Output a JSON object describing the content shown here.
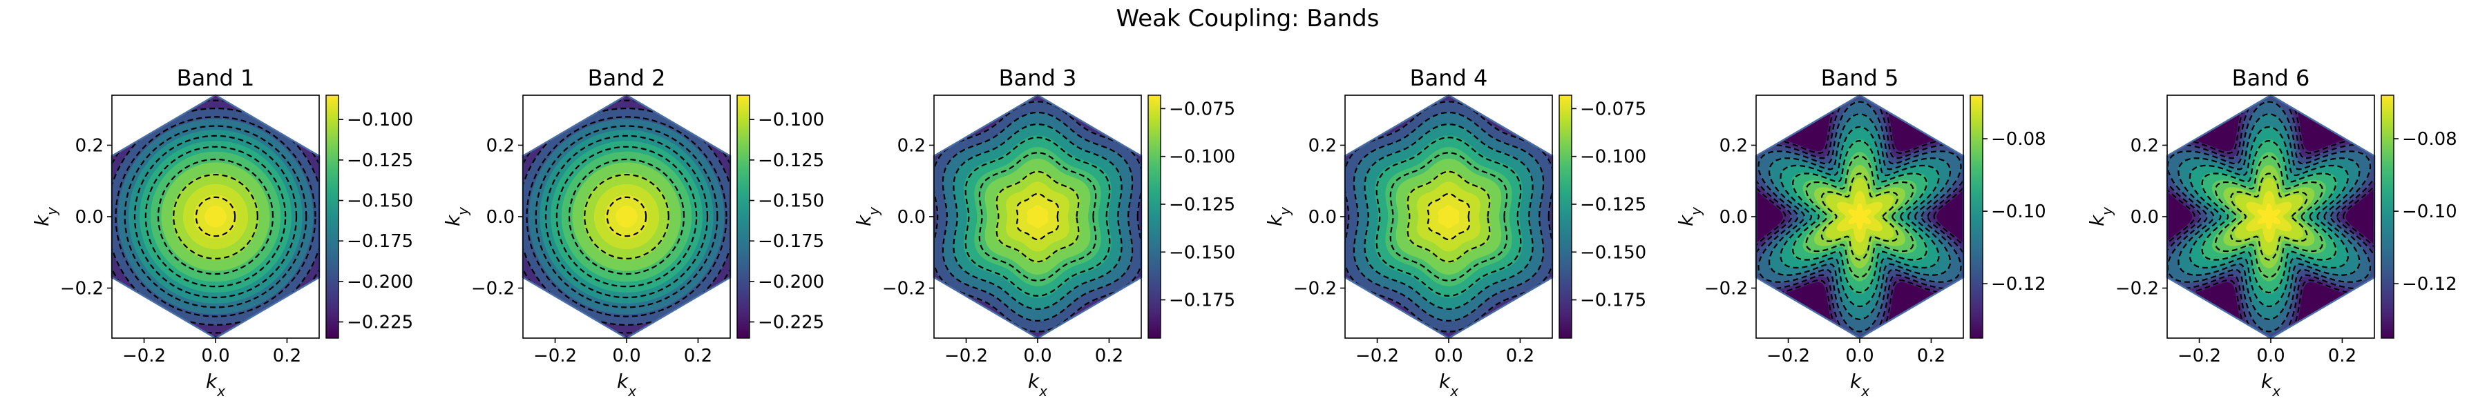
{
  "figure": {
    "title": "Weak Coupling: Bands"
  },
  "chart_data": [
    {
      "type": "heatmap",
      "title": "Band 1",
      "xlabel": "k_x",
      "ylabel": "k_y",
      "xlim": [
        -0.29,
        0.29
      ],
      "ylim": [
        -0.34,
        0.34
      ],
      "xticks": [
        -0.2,
        0.0,
        0.2
      ],
      "yticks": [
        -0.2,
        0.0,
        0.2
      ],
      "shape": "circular",
      "center": [
        0.0,
        0.0
      ],
      "clim": [
        -0.235,
        -0.085
      ],
      "colorbar_ticks": [
        -0.225,
        -0.2,
        -0.175,
        -0.15,
        -0.125,
        -0.1
      ],
      "colorbar_tick_labels": [
        "−0.225",
        "−0.200",
        "−0.175",
        "−0.150",
        "−0.125",
        "−0.100"
      ],
      "contour_levels": [
        -0.21,
        -0.195,
        -0.18,
        -0.165,
        -0.15,
        -0.135,
        -0.12,
        -0.105,
        -0.09
      ]
    },
    {
      "type": "heatmap",
      "title": "Band 2",
      "xlabel": "k_x",
      "ylabel": "k_y",
      "xlim": [
        -0.29,
        0.29
      ],
      "ylim": [
        -0.34,
        0.34
      ],
      "xticks": [
        -0.2,
        0.0,
        0.2
      ],
      "yticks": [
        -0.2,
        0.0,
        0.2
      ],
      "shape": "circular",
      "center": [
        0.0,
        0.0
      ],
      "clim": [
        -0.235,
        -0.085
      ],
      "colorbar_ticks": [
        -0.225,
        -0.2,
        -0.175,
        -0.15,
        -0.125,
        -0.1
      ],
      "colorbar_tick_labels": [
        "−0.225",
        "−0.200",
        "−0.175",
        "−0.150",
        "−0.125",
        "−0.100"
      ],
      "contour_levels": [
        -0.21,
        -0.195,
        -0.18,
        -0.165,
        -0.15,
        -0.135,
        -0.12,
        -0.105,
        -0.09
      ]
    },
    {
      "type": "heatmap",
      "title": "Band 3",
      "xlabel": "k_x",
      "ylabel": "k_y",
      "xlim": [
        -0.29,
        0.29
      ],
      "ylim": [
        -0.34,
        0.34
      ],
      "xticks": [
        -0.2,
        0.0,
        0.2
      ],
      "yticks": [
        -0.2,
        0.0,
        0.2
      ],
      "shape": "hexagonal",
      "center": [
        0.0,
        0.0
      ],
      "clim": [
        -0.195,
        -0.068
      ],
      "colorbar_ticks": [
        -0.175,
        -0.15,
        -0.125,
        -0.1,
        -0.075
      ],
      "colorbar_tick_labels": [
        "−0.175",
        "−0.150",
        "−0.125",
        "−0.100",
        "−0.075"
      ],
      "contour_levels": [
        -0.175,
        -0.16,
        -0.145,
        -0.13,
        -0.115,
        -0.1,
        -0.085,
        -0.073
      ]
    },
    {
      "type": "heatmap",
      "title": "Band 4",
      "xlabel": "k_x",
      "ylabel": "k_y",
      "xlim": [
        -0.29,
        0.29
      ],
      "ylim": [
        -0.34,
        0.34
      ],
      "xticks": [
        -0.2,
        0.0,
        0.2
      ],
      "yticks": [
        -0.2,
        0.0,
        0.2
      ],
      "shape": "hexagonal",
      "center": [
        0.0,
        0.0
      ],
      "clim": [
        -0.195,
        -0.068
      ],
      "colorbar_ticks": [
        -0.175,
        -0.15,
        -0.125,
        -0.1,
        -0.075
      ],
      "colorbar_tick_labels": [
        "−0.175",
        "−0.150",
        "−0.125",
        "−0.100",
        "−0.075"
      ],
      "contour_levels": [
        -0.175,
        -0.16,
        -0.145,
        -0.13,
        -0.115,
        -0.1,
        -0.085,
        -0.073
      ]
    },
    {
      "type": "heatmap",
      "title": "Band 5",
      "xlabel": "k_x",
      "ylabel": "k_y",
      "xlim": [
        -0.29,
        0.29
      ],
      "ylim": [
        -0.34,
        0.34
      ],
      "xticks": [
        -0.2,
        0.0,
        0.2
      ],
      "yticks": [
        -0.2,
        0.0,
        0.2
      ],
      "shape": "star",
      "center": [
        0.0,
        0.0
      ],
      "clim": [
        -0.135,
        -0.068
      ],
      "colorbar_ticks": [
        -0.12,
        -0.1,
        -0.08
      ],
      "colorbar_tick_labels": [
        "−0.12",
        "−0.10",
        "−0.08"
      ],
      "contour_levels": [
        -0.125,
        -0.118,
        -0.111,
        -0.104,
        -0.097,
        -0.09,
        -0.083,
        -0.076
      ]
    },
    {
      "type": "heatmap",
      "title": "Band 6",
      "xlabel": "k_x",
      "ylabel": "k_y",
      "xlim": [
        -0.29,
        0.29
      ],
      "ylim": [
        -0.34,
        0.34
      ],
      "xticks": [
        -0.2,
        0.0,
        0.2
      ],
      "yticks": [
        -0.2,
        0.0,
        0.2
      ],
      "shape": "star",
      "center": [
        -0.005,
        0.0
      ],
      "clim": [
        -0.135,
        -0.068
      ],
      "colorbar_ticks": [
        -0.12,
        -0.1,
        -0.08
      ],
      "colorbar_tick_labels": [
        "−0.12",
        "−0.10",
        "−0.08"
      ],
      "contour_levels": [
        -0.125,
        -0.118,
        -0.111,
        -0.104,
        -0.097,
        -0.09,
        -0.083,
        -0.076
      ]
    }
  ],
  "colors": {
    "colormap": "viridis",
    "boundary": "#4a6fa5",
    "contour": "#000000"
  }
}
